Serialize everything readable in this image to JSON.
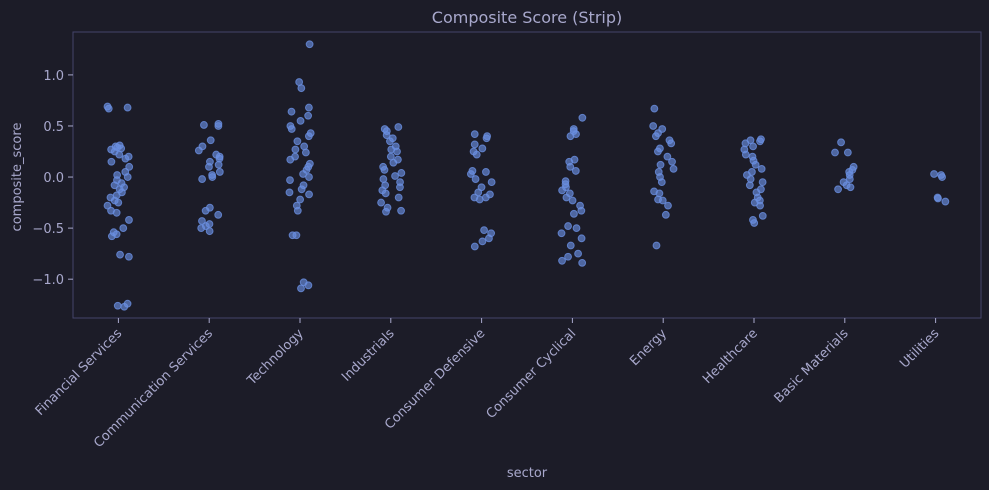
{
  "chart_data": {
    "type": "strip",
    "title": "Composite Score (Strip)",
    "x_label": "sector",
    "y_label": "composite_score",
    "categories": [
      "Financial Services",
      "Communication Services",
      "Technology",
      "Industrials",
      "Consumer Defensive",
      "Consumer Cyclical",
      "Energy",
      "Healthcare",
      "Basic Materials",
      "Utilities"
    ],
    "values": [
      [
        0.69,
        0.68,
        0.67,
        0.31,
        0.3,
        0.29,
        0.28,
        0.27,
        0.25,
        0.22,
        0.2,
        0.18,
        0.15,
        0.1,
        0.05,
        0.02,
        0,
        -0.03,
        -0.06,
        -0.08,
        -0.1,
        -0.12,
        -0.15,
        -0.18,
        -0.2,
        -0.23,
        -0.25,
        -0.28,
        -0.33,
        -0.35,
        -0.42,
        -0.5,
        -0.54,
        -0.56,
        -0.58,
        -0.76,
        -0.78,
        -1.24,
        -1.26,
        -1.27
      ],
      [
        0.52,
        0.51,
        0.5,
        0.36,
        0.3,
        0.26,
        0.22,
        0.2,
        0.18,
        0.15,
        0.12,
        0.1,
        0.05,
        0.02,
        0,
        -0.02,
        -0.3,
        -0.33,
        -0.37,
        -0.43,
        -0.46,
        -0.48,
        -0.5,
        -0.53
      ],
      [
        1.3,
        0.93,
        0.87,
        0.68,
        0.64,
        0.6,
        0.55,
        0.5,
        0.47,
        0.43,
        0.4,
        0.35,
        0.3,
        0.27,
        0.24,
        0.2,
        0.17,
        0.13,
        0.1,
        0.07,
        0.03,
        0,
        -0.03,
        -0.08,
        -0.12,
        -0.15,
        -0.17,
        -0.22,
        -0.28,
        -0.33,
        -0.57,
        -0.57,
        -1.03,
        -1.06,
        -1.09
      ],
      [
        0.49,
        0.47,
        0.45,
        0.41,
        0.38,
        0.35,
        0.3,
        0.27,
        0.25,
        0.2,
        0.17,
        0.14,
        0.1,
        0.07,
        0.04,
        0.01,
        -0.02,
        -0.05,
        -0.08,
        -0.1,
        -0.13,
        -0.16,
        -0.2,
        -0.25,
        -0.3,
        -0.34,
        -0.33
      ],
      [
        0.42,
        0.4,
        0.38,
        0.32,
        0.28,
        0.25,
        0.22,
        0.06,
        0.05,
        0.03,
        -0.02,
        -0.05,
        -0.1,
        -0.15,
        -0.17,
        -0.2,
        -0.2,
        -0.22,
        -0.52,
        -0.55,
        -0.6,
        -0.63,
        -0.68
      ],
      [
        0.58,
        0.47,
        0.45,
        0.42,
        0.4,
        0.17,
        0.15,
        0.1,
        0.06,
        -0.04,
        -0.07,
        -0.1,
        -0.13,
        -0.16,
        -0.2,
        -0.23,
        -0.28,
        -0.33,
        -0.36,
        -0.48,
        -0.5,
        -0.55,
        -0.6,
        -0.67,
        -0.75,
        -0.78,
        -0.82,
        -0.84
      ],
      [
        0.67,
        0.5,
        0.47,
        0.43,
        0.4,
        0.36,
        0.33,
        0.28,
        0.25,
        0.2,
        0.15,
        0.12,
        0.08,
        0.05,
        0,
        -0.05,
        -0.14,
        -0.16,
        -0.22,
        -0.23,
        -0.28,
        -0.37,
        -0.67
      ],
      [
        0.37,
        0.36,
        0.35,
        0.33,
        0.3,
        0.27,
        0.22,
        0.2,
        0.16,
        0.12,
        0.08,
        0.05,
        0.02,
        -0.02,
        -0.05,
        -0.08,
        -0.12,
        -0.15,
        -0.2,
        -0.23,
        -0.25,
        -0.28,
        -0.38,
        -0.42,
        -0.45
      ],
      [
        0.34,
        0.24,
        0.24,
        0.1,
        0.07,
        0.05,
        0.02,
        -0.02,
        -0.05,
        -0.08,
        -0.1,
        -0.12
      ],
      [
        0.03,
        0.02,
        0,
        -0.2,
        -0.21,
        -0.24
      ]
    ],
    "color": "#6a8fe0",
    "ylim": [
      -1.38,
      1.42
    ],
    "yticks": [
      {
        "value": -1.0,
        "label": "−1.0"
      },
      {
        "value": -0.5,
        "label": "−0.5"
      },
      {
        "value": 0.0,
        "label": "0.0"
      },
      {
        "value": 0.5,
        "label": "0.5"
      },
      {
        "value": 1.0,
        "label": "1.0"
      }
    ]
  }
}
